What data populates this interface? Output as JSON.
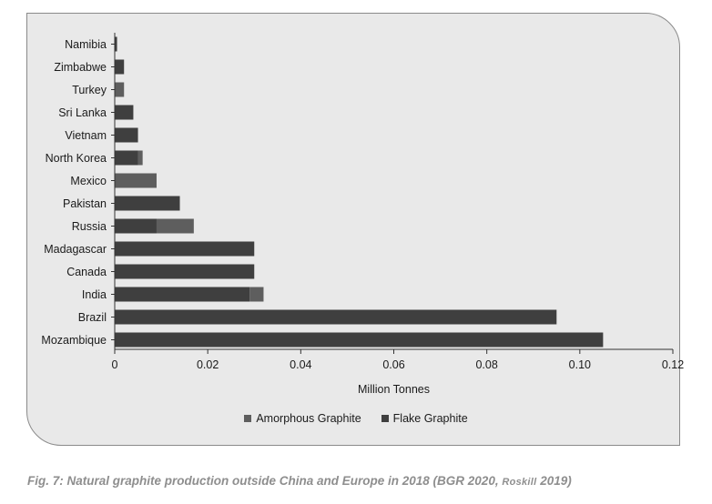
{
  "chart_data": {
    "type": "bar",
    "orientation": "horizontal",
    "stacked": true,
    "categories": [
      "Namibia",
      "Zimbabwe",
      "Turkey",
      "Sri Lanka",
      "Vietnam",
      "North Korea",
      "Mexico",
      "Pakistan",
      "Russia",
      "Madagascar",
      "Canada",
      "India",
      "Brazil",
      "Mozambique"
    ],
    "series": [
      {
        "name": "Flake Graphite",
        "color": "#3f3f3f",
        "values": [
          0.0005,
          0.002,
          0.0,
          0.004,
          0.005,
          0.005,
          0.0,
          0.014,
          0.009,
          0.03,
          0.03,
          0.029,
          0.095,
          0.105
        ]
      },
      {
        "name": "Amorphous Graphite",
        "color": "#5e5e5e",
        "values": [
          0.0,
          0.0,
          0.002,
          0.0,
          0.0,
          0.001,
          0.009,
          0.0,
          0.008,
          0.0,
          0.0,
          0.003,
          0.0,
          0.0
        ]
      }
    ],
    "xlabel": "Million Tonnes",
    "xlim": [
      0,
      0.12
    ],
    "xticks": [
      "0",
      "0.02",
      "0.04",
      "0.06",
      "0.08",
      "0.10",
      "0.12"
    ],
    "grid": false,
    "legend": "bottom",
    "legend_order": [
      "Amorphous Graphite",
      "Flake Graphite"
    ]
  },
  "caption": {
    "prefix": "Fig. 7: Natural graphite production outside China and Europe in 2018 (BGR 2020, ",
    "smallcaps": "Roskill",
    "suffix": " 2019)"
  }
}
